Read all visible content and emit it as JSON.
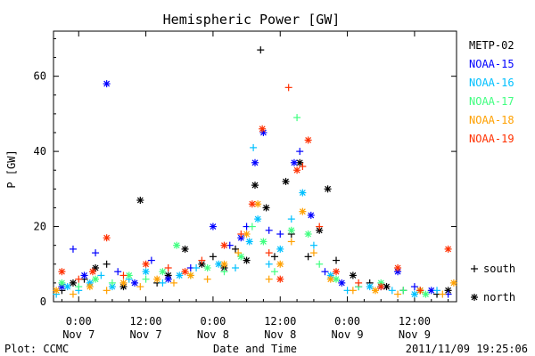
{
  "chart_data": {
    "type": "scatter",
    "title": "Hemispheric Power [GW]",
    "xlabel": "Date and Time",
    "ylabel": "P [GW]",
    "xlim_hours": [
      -4.5,
      67.5
    ],
    "ylim": [
      0,
      72
    ],
    "yticks": [
      0,
      20,
      40,
      60
    ],
    "xticks": [
      {
        "hour": 0,
        "time": "0:00",
        "date": "Nov 7"
      },
      {
        "hour": 12,
        "time": "12:00",
        "date": "Nov 7"
      },
      {
        "hour": 24,
        "time": "0:00",
        "date": "Nov 8"
      },
      {
        "hour": 36,
        "time": "12:00",
        "date": "Nov 8"
      },
      {
        "hour": 48,
        "time": "0:00",
        "date": "Nov 9"
      },
      {
        "hour": 60,
        "time": "12:00",
        "date": "Nov 9"
      }
    ],
    "grid": false,
    "legend_position": "right",
    "marker_legend": [
      {
        "marker": "+",
        "label": "south"
      },
      {
        "marker": "*",
        "label": "north"
      }
    ],
    "series": [
      {
        "name": "METP-02",
        "color": "#000000",
        "points": [
          {
            "x": -3,
            "y": 3,
            "m": "+"
          },
          {
            "x": -1,
            "y": 5,
            "m": "*"
          },
          {
            "x": 1,
            "y": 6,
            "m": "+"
          },
          {
            "x": 3,
            "y": 9,
            "m": "*"
          },
          {
            "x": 5,
            "y": 10,
            "m": "+"
          },
          {
            "x": 8,
            "y": 4,
            "m": "*"
          },
          {
            "x": 11,
            "y": 27,
            "m": "*"
          },
          {
            "x": 14,
            "y": 5,
            "m": "+"
          },
          {
            "x": 16,
            "y": 7,
            "m": "*"
          },
          {
            "x": 19,
            "y": 14,
            "m": "*"
          },
          {
            "x": 22,
            "y": 10,
            "m": "*"
          },
          {
            "x": 24,
            "y": 12,
            "m": "+"
          },
          {
            "x": 26,
            "y": 9,
            "m": "*"
          },
          {
            "x": 28,
            "y": 14,
            "m": "+"
          },
          {
            "x": 30,
            "y": 11,
            "m": "*"
          },
          {
            "x": 31.5,
            "y": 31,
            "m": "*"
          },
          {
            "x": 32.5,
            "y": 67,
            "m": "+"
          },
          {
            "x": 33.5,
            "y": 25,
            "m": "*"
          },
          {
            "x": 35,
            "y": 12,
            "m": "+"
          },
          {
            "x": 37,
            "y": 32,
            "m": "*"
          },
          {
            "x": 38,
            "y": 18,
            "m": "+"
          },
          {
            "x": 39.5,
            "y": 37,
            "m": "*"
          },
          {
            "x": 41,
            "y": 12,
            "m": "+"
          },
          {
            "x": 43,
            "y": 19,
            "m": "*"
          },
          {
            "x": 44.5,
            "y": 30,
            "m": "*"
          },
          {
            "x": 46,
            "y": 11,
            "m": "+"
          },
          {
            "x": 49,
            "y": 7,
            "m": "*"
          },
          {
            "x": 52,
            "y": 5,
            "m": "+"
          },
          {
            "x": 55,
            "y": 4,
            "m": "*"
          },
          {
            "x": 58,
            "y": 3,
            "m": "+"
          },
          {
            "x": 61,
            "y": 3,
            "m": "*"
          },
          {
            "x": 64,
            "y": 2,
            "m": "+"
          },
          {
            "x": 66,
            "y": 3,
            "m": "*"
          }
        ]
      },
      {
        "name": "NOAA-15",
        "color": "#0000ff",
        "points": [
          {
            "x": -3,
            "y": 4,
            "m": "*"
          },
          {
            "x": -1,
            "y": 14,
            "m": "+"
          },
          {
            "x": 1,
            "y": 7,
            "m": "*"
          },
          {
            "x": 3,
            "y": 13,
            "m": "+"
          },
          {
            "x": 5,
            "y": 58,
            "m": "*"
          },
          {
            "x": 7,
            "y": 8,
            "m": "+"
          },
          {
            "x": 10,
            "y": 5,
            "m": "*"
          },
          {
            "x": 13,
            "y": 11,
            "m": "+"
          },
          {
            "x": 16,
            "y": 6,
            "m": "*"
          },
          {
            "x": 20,
            "y": 9,
            "m": "+"
          },
          {
            "x": 24,
            "y": 20,
            "m": "*"
          },
          {
            "x": 27,
            "y": 15,
            "m": "+"
          },
          {
            "x": 29,
            "y": 17,
            "m": "*"
          },
          {
            "x": 30,
            "y": 20,
            "m": "+"
          },
          {
            "x": 31.5,
            "y": 37,
            "m": "*"
          },
          {
            "x": 33,
            "y": 45,
            "m": "*"
          },
          {
            "x": 34,
            "y": 19,
            "m": "+"
          },
          {
            "x": 36,
            "y": 18,
            "m": "+"
          },
          {
            "x": 38.5,
            "y": 37,
            "m": "*"
          },
          {
            "x": 39.5,
            "y": 40,
            "m": "+"
          },
          {
            "x": 41.5,
            "y": 23,
            "m": "*"
          },
          {
            "x": 44,
            "y": 8,
            "m": "+"
          },
          {
            "x": 47,
            "y": 5,
            "m": "*"
          },
          {
            "x": 50,
            "y": 4,
            "m": "+"
          },
          {
            "x": 54,
            "y": 4,
            "m": "*"
          },
          {
            "x": 57,
            "y": 8,
            "m": "*"
          },
          {
            "x": 60,
            "y": 4,
            "m": "+"
          },
          {
            "x": 63,
            "y": 3,
            "m": "*"
          },
          {
            "x": 66,
            "y": 2,
            "m": "+"
          }
        ]
      },
      {
        "name": "NOAA-16",
        "color": "#00c0ff",
        "points": [
          {
            "x": -4,
            "y": 2,
            "m": "+"
          },
          {
            "x": -2,
            "y": 4,
            "m": "*"
          },
          {
            "x": 0,
            "y": 3,
            "m": "+"
          },
          {
            "x": 2,
            "y": 5,
            "m": "*"
          },
          {
            "x": 4,
            "y": 7,
            "m": "+"
          },
          {
            "x": 6,
            "y": 4,
            "m": "*"
          },
          {
            "x": 9,
            "y": 6,
            "m": "+"
          },
          {
            "x": 12,
            "y": 8,
            "m": "*"
          },
          {
            "x": 15,
            "y": 5,
            "m": "+"
          },
          {
            "x": 18,
            "y": 7,
            "m": "*"
          },
          {
            "x": 21,
            "y": 9,
            "m": "+"
          },
          {
            "x": 25,
            "y": 10,
            "m": "*"
          },
          {
            "x": 28,
            "y": 9,
            "m": "+"
          },
          {
            "x": 30.5,
            "y": 16,
            "m": "*"
          },
          {
            "x": 31.2,
            "y": 41,
            "m": "+"
          },
          {
            "x": 32,
            "y": 22,
            "m": "*"
          },
          {
            "x": 34,
            "y": 10,
            "m": "+"
          },
          {
            "x": 36,
            "y": 14,
            "m": "*"
          },
          {
            "x": 38,
            "y": 22,
            "m": "+"
          },
          {
            "x": 40,
            "y": 29,
            "m": "*"
          },
          {
            "x": 42,
            "y": 15,
            "m": "+"
          },
          {
            "x": 45,
            "y": 7,
            "m": "*"
          },
          {
            "x": 48,
            "y": 3,
            "m": "+"
          },
          {
            "x": 52,
            "y": 4,
            "m": "*"
          },
          {
            "x": 56,
            "y": 3,
            "m": "+"
          },
          {
            "x": 60,
            "y": 2,
            "m": "*"
          },
          {
            "x": 64,
            "y": 3,
            "m": "+"
          }
        ]
      },
      {
        "name": "NOAA-17",
        "color": "#40ff80",
        "points": [
          {
            "x": -3,
            "y": 5,
            "m": "*"
          },
          {
            "x": 0,
            "y": 4,
            "m": "+"
          },
          {
            "x": 3,
            "y": 6,
            "m": "*"
          },
          {
            "x": 6,
            "y": 5,
            "m": "+"
          },
          {
            "x": 9,
            "y": 7,
            "m": "*"
          },
          {
            "x": 12,
            "y": 6,
            "m": "+"
          },
          {
            "x": 15,
            "y": 8,
            "m": "*"
          },
          {
            "x": 17.5,
            "y": 15,
            "m": "*"
          },
          {
            "x": 20,
            "y": 7,
            "m": "+"
          },
          {
            "x": 23,
            "y": 9,
            "m": "*"
          },
          {
            "x": 26,
            "y": 8,
            "m": "+"
          },
          {
            "x": 29,
            "y": 12,
            "m": "*"
          },
          {
            "x": 31,
            "y": 20,
            "m": "+"
          },
          {
            "x": 33,
            "y": 16,
            "m": "*"
          },
          {
            "x": 35,
            "y": 8,
            "m": "+"
          },
          {
            "x": 38,
            "y": 19,
            "m": "*"
          },
          {
            "x": 39,
            "y": 49,
            "m": "+"
          },
          {
            "x": 41,
            "y": 18,
            "m": "*"
          },
          {
            "x": 43,
            "y": 10,
            "m": "+"
          },
          {
            "x": 46,
            "y": 6,
            "m": "*"
          },
          {
            "x": 50,
            "y": 4,
            "m": "+"
          },
          {
            "x": 54,
            "y": 5,
            "m": "*"
          },
          {
            "x": 58,
            "y": 3,
            "m": "+"
          },
          {
            "x": 62,
            "y": 2,
            "m": "*"
          }
        ]
      },
      {
        "name": "NOAA-18",
        "color": "#ffa000",
        "points": [
          {
            "x": -4,
            "y": 3,
            "m": "*"
          },
          {
            "x": -1,
            "y": 2,
            "m": "+"
          },
          {
            "x": 2,
            "y": 4,
            "m": "*"
          },
          {
            "x": 5,
            "y": 3,
            "m": "+"
          },
          {
            "x": 8,
            "y": 5,
            "m": "*"
          },
          {
            "x": 11,
            "y": 4,
            "m": "+"
          },
          {
            "x": 14,
            "y": 6,
            "m": "*"
          },
          {
            "x": 17,
            "y": 5,
            "m": "+"
          },
          {
            "x": 20,
            "y": 7,
            "m": "*"
          },
          {
            "x": 23,
            "y": 6,
            "m": "+"
          },
          {
            "x": 26,
            "y": 10,
            "m": "*"
          },
          {
            "x": 28.5,
            "y": 13,
            "m": "+"
          },
          {
            "x": 30,
            "y": 18,
            "m": "*"
          },
          {
            "x": 32,
            "y": 26,
            "m": "*"
          },
          {
            "x": 34,
            "y": 6,
            "m": "+"
          },
          {
            "x": 36,
            "y": 10,
            "m": "*"
          },
          {
            "x": 38,
            "y": 16,
            "m": "+"
          },
          {
            "x": 40,
            "y": 24,
            "m": "*"
          },
          {
            "x": 42,
            "y": 13,
            "m": "+"
          },
          {
            "x": 45,
            "y": 6,
            "m": "*"
          },
          {
            "x": 49,
            "y": 3,
            "m": "+"
          },
          {
            "x": 53,
            "y": 3,
            "m": "*"
          },
          {
            "x": 57,
            "y": 2,
            "m": "+"
          },
          {
            "x": 61,
            "y": 3,
            "m": "*"
          },
          {
            "x": 65,
            "y": 2,
            "m": "+"
          },
          {
            "x": 67,
            "y": 5,
            "m": "*"
          }
        ]
      },
      {
        "name": "NOAA-19",
        "color": "#ff3000",
        "points": [
          {
            "x": -3,
            "y": 8,
            "m": "*"
          },
          {
            "x": 0,
            "y": 6,
            "m": "+"
          },
          {
            "x": 2.5,
            "y": 8,
            "m": "*"
          },
          {
            "x": 5,
            "y": 17,
            "m": "*"
          },
          {
            "x": 8,
            "y": 7,
            "m": "+"
          },
          {
            "x": 12,
            "y": 10,
            "m": "*"
          },
          {
            "x": 16,
            "y": 9,
            "m": "+"
          },
          {
            "x": 19,
            "y": 8,
            "m": "*"
          },
          {
            "x": 22,
            "y": 11,
            "m": "+"
          },
          {
            "x": 26,
            "y": 15,
            "m": "*"
          },
          {
            "x": 29,
            "y": 18,
            "m": "+"
          },
          {
            "x": 31,
            "y": 26,
            "m": "*"
          },
          {
            "x": 32.8,
            "y": 46,
            "m": "*"
          },
          {
            "x": 34,
            "y": 13,
            "m": "+"
          },
          {
            "x": 36,
            "y": 6,
            "m": "*"
          },
          {
            "x": 37.5,
            "y": 57,
            "m": "+"
          },
          {
            "x": 39,
            "y": 35,
            "m": "*"
          },
          {
            "x": 40,
            "y": 36,
            "m": "+"
          },
          {
            "x": 41,
            "y": 43,
            "m": "*"
          },
          {
            "x": 43,
            "y": 20,
            "m": "+"
          },
          {
            "x": 46,
            "y": 8,
            "m": "*"
          },
          {
            "x": 50,
            "y": 5,
            "m": "+"
          },
          {
            "x": 54,
            "y": 4,
            "m": "*"
          },
          {
            "x": 57,
            "y": 9,
            "m": "*"
          },
          {
            "x": 61,
            "y": 3,
            "m": "+"
          },
          {
            "x": 66,
            "y": 14,
            "m": "*"
          }
        ]
      }
    ]
  },
  "footer": {
    "source": "Plot: CCMC",
    "timestamp": "2011/11/09 19:25:06"
  }
}
